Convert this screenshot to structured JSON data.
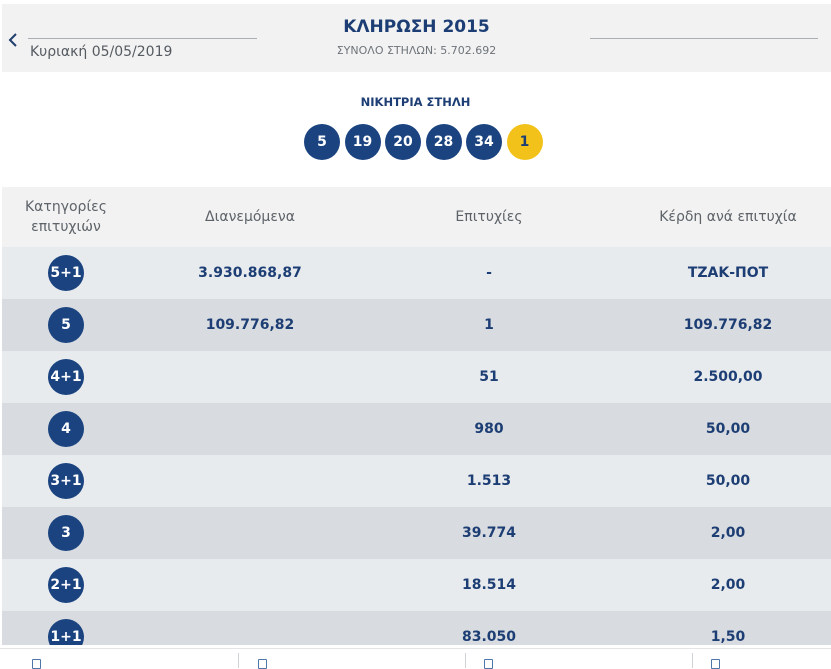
{
  "header": {
    "back_icon": "chevron-left-icon",
    "date": "Κυριακή 05/05/2019",
    "title": "ΚΛΗΡΩΣΗ 2015",
    "subtitle": "ΣΥΝΟΛΟ ΣΤΗΛΩΝ: 5.702.692"
  },
  "winning": {
    "label": "ΝΙΚΗΤΡΙΑ ΣΤΗΛΗ",
    "numbers": [
      "5",
      "19",
      "20",
      "28",
      "34"
    ],
    "joker": "1",
    "colors": {
      "number_ball": "#1a4380",
      "joker_ball": "#f2c21b"
    }
  },
  "table": {
    "headers": {
      "category": "Κατηγορίες επιτυχιών",
      "distributed": "Διανεμόμενα",
      "winners": "Επιτυχίες",
      "prize": "Κέρδη ανά επιτυχία"
    },
    "rows": [
      {
        "category": "5+1",
        "distributed": "3.930.868,87",
        "winners": "-",
        "prize": "ΤΖΑΚ-ΠΟΤ"
      },
      {
        "category": "5",
        "distributed": "109.776,82",
        "winners": "1",
        "prize": "109.776,82"
      },
      {
        "category": "4+1",
        "distributed": "",
        "winners": "51",
        "prize": "2.500,00"
      },
      {
        "category": "4",
        "distributed": "",
        "winners": "980",
        "prize": "50,00"
      },
      {
        "category": "3+1",
        "distributed": "",
        "winners": "1.513",
        "prize": "50,00"
      },
      {
        "category": "3",
        "distributed": "",
        "winners": "39.774",
        "prize": "2,00"
      },
      {
        "category": "2+1",
        "distributed": "",
        "winners": "18.514",
        "prize": "2,00"
      },
      {
        "category": "1+1",
        "distributed": "",
        "winners": "83.050",
        "prize": "1,50"
      }
    ]
  },
  "bottom_bar": {
    "icons": [
      "document-icon",
      "document-icon",
      "document-icon",
      "document-icon"
    ]
  }
}
